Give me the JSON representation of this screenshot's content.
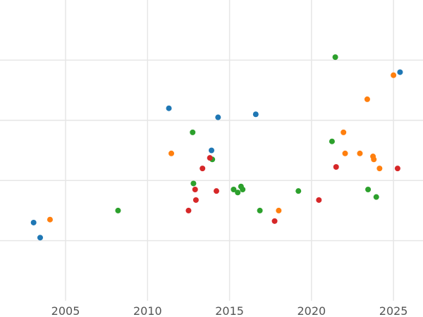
{
  "chart_data": {
    "type": "scatter",
    "title": "",
    "xlabel": "",
    "ylabel": "",
    "xlim": [
      2001.0,
      2026.8
    ],
    "ylim": [
      0,
      10
    ],
    "x_ticks": [
      2005,
      2010,
      2015,
      2020,
      2025
    ],
    "x_tick_labels": [
      "2005",
      "2010",
      "2015",
      "2020",
      "2025"
    ],
    "y_gridlines": [
      2,
      4,
      6,
      8
    ],
    "y_tick_labels_shown": false,
    "grid": true,
    "legend": "none",
    "series": [
      {
        "color": "#1f77b4",
        "points": [
          [
            2003.05,
            2.6
          ],
          [
            2003.45,
            2.1
          ],
          [
            2011.3,
            6.4
          ],
          [
            2013.9,
            5.0
          ],
          [
            2014.3,
            6.1
          ],
          [
            2016.6,
            6.2
          ],
          [
            2025.4,
            7.6
          ]
        ]
      },
      {
        "color": "#ff7f0e",
        "points": [
          [
            2004.05,
            2.7
          ],
          [
            2011.45,
            4.9
          ],
          [
            2018.0,
            3.0
          ],
          [
            2021.95,
            5.6
          ],
          [
            2022.05,
            4.9
          ],
          [
            2022.95,
            4.9
          ],
          [
            2023.4,
            6.7
          ],
          [
            2023.75,
            4.8
          ],
          [
            2023.8,
            4.7
          ],
          [
            2024.15,
            4.4
          ],
          [
            2025.0,
            7.5
          ]
        ]
      },
      {
        "color": "#2ca02c",
        "points": [
          [
            2008.2,
            3.0
          ],
          [
            2012.75,
            5.6
          ],
          [
            2012.8,
            3.9
          ],
          [
            2013.95,
            4.7
          ],
          [
            2015.25,
            3.7
          ],
          [
            2015.5,
            3.6
          ],
          [
            2015.7,
            3.8
          ],
          [
            2015.8,
            3.7
          ],
          [
            2016.85,
            3.0
          ],
          [
            2019.2,
            3.65
          ],
          [
            2021.25,
            5.3
          ],
          [
            2021.45,
            8.1
          ],
          [
            2023.45,
            3.7
          ],
          [
            2023.95,
            3.45
          ]
        ]
      },
      {
        "color": "#d62728",
        "points": [
          [
            2012.5,
            3.0
          ],
          [
            2012.9,
            3.7
          ],
          [
            2012.95,
            3.35
          ],
          [
            2013.35,
            4.4
          ],
          [
            2013.8,
            4.75
          ],
          [
            2014.2,
            3.65
          ],
          [
            2017.75,
            2.65
          ],
          [
            2020.45,
            3.35
          ],
          [
            2021.5,
            4.45
          ],
          [
            2025.25,
            4.4
          ]
        ]
      }
    ]
  }
}
